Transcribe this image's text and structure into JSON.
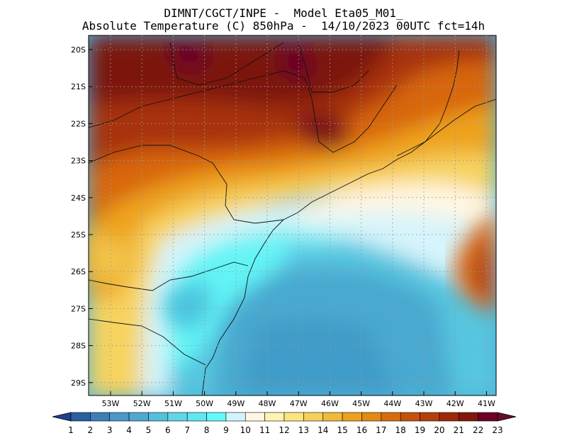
{
  "title": {
    "line1": "DIMNT/CGCT/INPE -  Model Eta05_M01_",
    "line2": "Absolute Temperature (C) 850hPa -  14/10/2023 00UTC fct=14h"
  },
  "map": {
    "lat_labels": [
      "20S",
      "21S",
      "22S",
      "23S",
      "24S",
      "25S",
      "26S",
      "27S",
      "28S",
      "29S"
    ],
    "lon_labels": [
      "53W",
      "52W",
      "51W",
      "50W",
      "49W",
      "48W",
      "47W",
      "46W",
      "45W",
      "44W",
      "43W",
      "42W",
      "41W"
    ],
    "grid": "dotted"
  },
  "colorbar": {
    "labels": [
      "1",
      "2",
      "3",
      "4",
      "5",
      "6",
      "7",
      "8",
      "9",
      "10",
      "11",
      "12",
      "13",
      "14",
      "15",
      "16",
      "17",
      "18",
      "19",
      "20",
      "21",
      "22",
      "23"
    ],
    "colors": [
      "#1f3f8f",
      "#2a5fa0",
      "#3a7fb8",
      "#4a97c8",
      "#4ea9d2",
      "#55c0dc",
      "#60d6e8",
      "#5ee8f0",
      "#62f9f9",
      "#d2f3fb",
      "#fff7e4",
      "#fff3b0",
      "#fde57e",
      "#f6d05c",
      "#f0b93a",
      "#eca21c",
      "#e38a12",
      "#d86c0c",
      "#c5520a",
      "#b43f0c",
      "#9e2a08",
      "#83170e",
      "#6e0026",
      "#6a0a2a"
    ]
  }
}
